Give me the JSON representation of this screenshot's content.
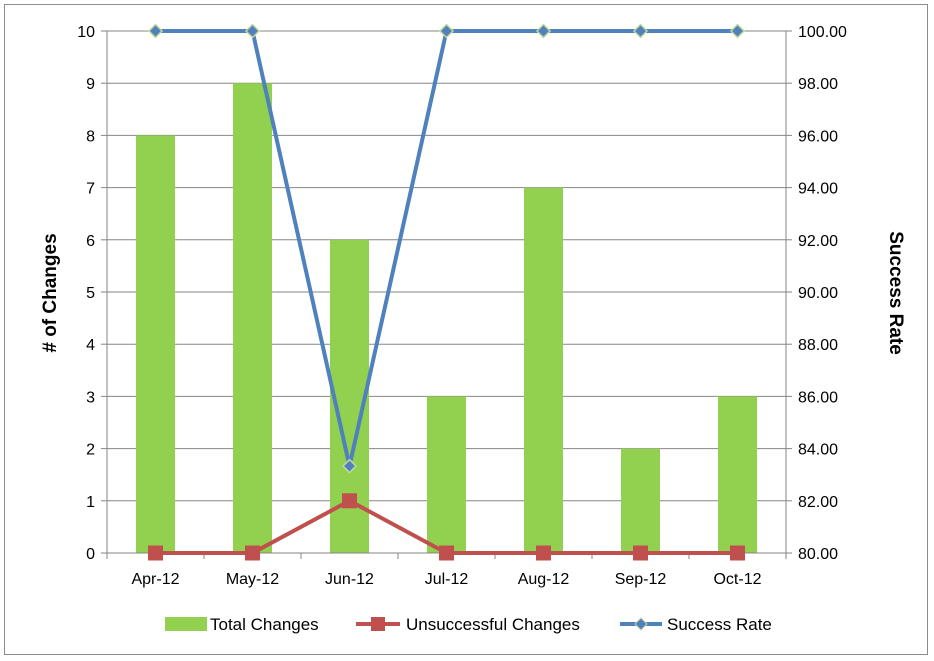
{
  "chart_data": {
    "type": "bar",
    "categories": [
      "Apr-12",
      "May-12",
      "Jun-12",
      "Jul-12",
      "Aug-12",
      "Sep-12",
      "Oct-12"
    ],
    "series": [
      {
        "name": "Total Changes",
        "kind": "bar",
        "axis": "left",
        "color": "#92d050",
        "values": [
          8,
          9,
          6,
          3,
          7,
          2,
          3
        ]
      },
      {
        "name": "Unsuccessful Changes",
        "kind": "line",
        "marker": "square",
        "axis": "left",
        "color": "#c0504d",
        "values": [
          0,
          0,
          1,
          0,
          0,
          0,
          0
        ]
      },
      {
        "name": "Success Rate",
        "kind": "line",
        "marker": "diamond",
        "axis": "right",
        "color": "#4f81bd",
        "values": [
          100.0,
          100.0,
          83.33,
          100.0,
          100.0,
          100.0,
          100.0
        ]
      }
    ],
    "ylabel": "# of Changes",
    "y2label": "Success Rate",
    "ylim": [
      0,
      10
    ],
    "y2lim": [
      80,
      100
    ],
    "yticks": [
      "0",
      "1",
      "2",
      "3",
      "4",
      "5",
      "6",
      "7",
      "8",
      "9",
      "10"
    ],
    "y2ticks": [
      "80.00",
      "82.00",
      "84.00",
      "86.00",
      "88.00",
      "90.00",
      "92.00",
      "94.00",
      "96.00",
      "98.00",
      "100.00"
    ],
    "grid": true,
    "legend_position": "bottom"
  }
}
